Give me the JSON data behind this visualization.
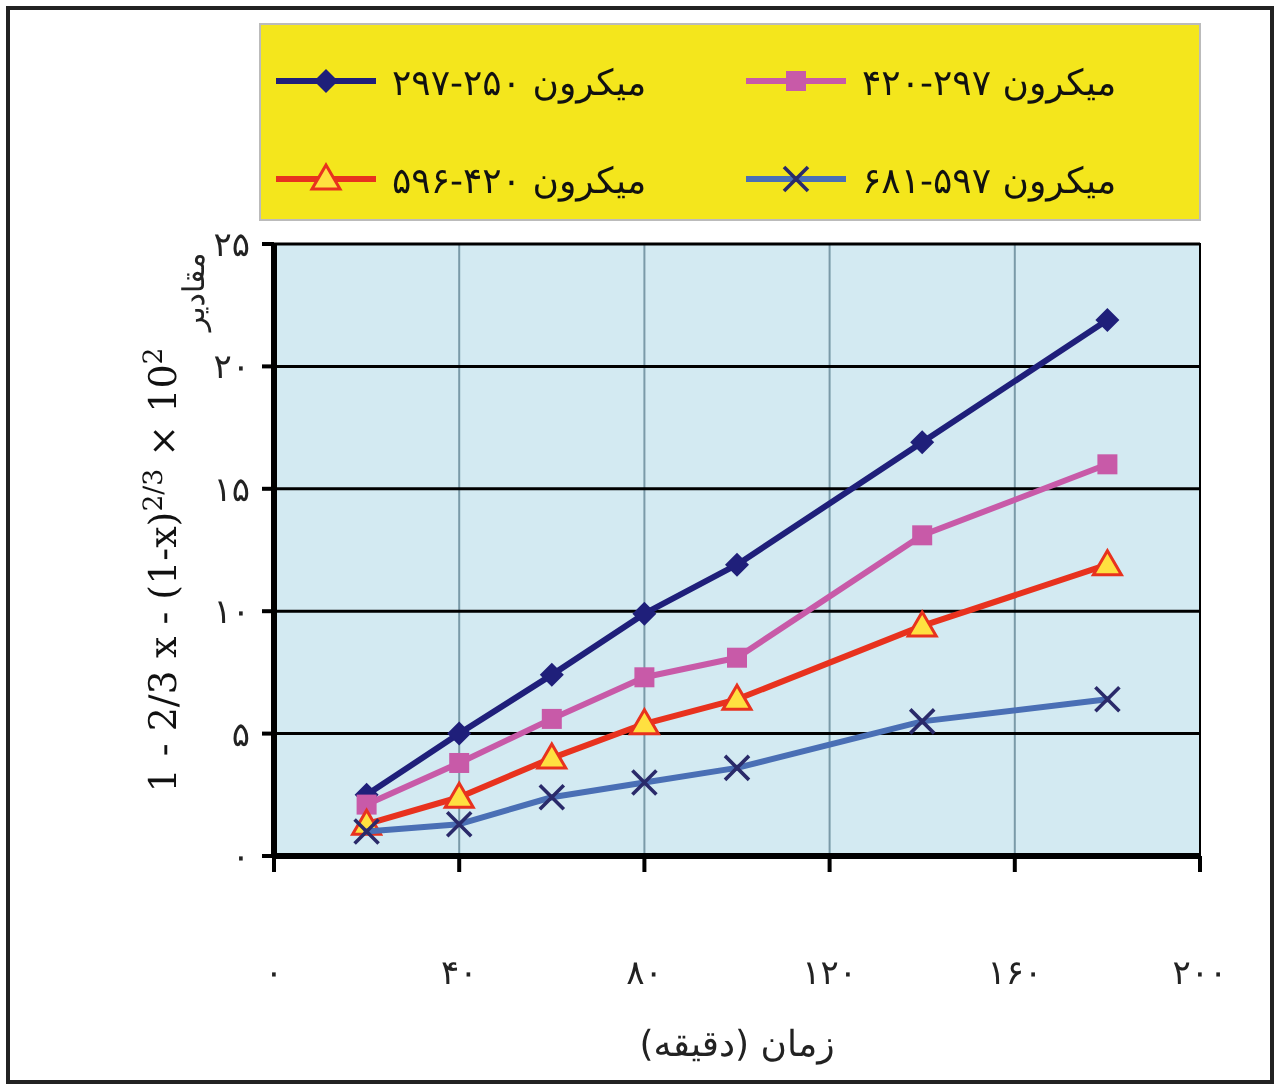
{
  "chart_data": {
    "type": "line",
    "xlabel": "زمان (دقیقه)",
    "ylabel": "1 - 2/3 x - (1-x)$^{2/3}$ × 10$^{2}$",
    "annotations": [
      "مقادیر"
    ],
    "x": [
      20,
      40,
      60,
      80,
      100,
      140,
      180
    ],
    "series": [
      {
        "name": "میکرون ۲۵۰-۲۹۷",
        "color": "#1f1f7a",
        "marker": "diamond",
        "values": [
          2.5,
          5.0,
          7.4,
          9.9,
          11.9,
          16.9,
          21.9
        ]
      },
      {
        "name": "میکرون ۲۹۷-۴۲۰",
        "color": "#c85aa8",
        "marker": "square",
        "values": [
          2.1,
          3.8,
          5.6,
          7.3,
          8.1,
          13.1,
          16.0
        ]
      },
      {
        "name": "میکرون ۴۲۰-۵۹۶",
        "color": "#e8321e",
        "marker": "triangle",
        "values": [
          1.3,
          2.4,
          4.0,
          5.4,
          6.4,
          9.4,
          11.9
        ]
      },
      {
        "name": "میکرون ۵۹۷-۶۸۱",
        "color": "#4a6fb5",
        "marker": "cross",
        "values": [
          1.0,
          1.3,
          2.4,
          3.0,
          3.6,
          5.5,
          6.4
        ]
      }
    ],
    "xlim": [
      0,
      200
    ],
    "xticks": [
      {
        "value": 0,
        "label": "۰"
      },
      {
        "value": 40,
        "label": "۴۰"
      },
      {
        "value": 80,
        "label": "۸۰"
      },
      {
        "value": 120,
        "label": "۱۲۰"
      },
      {
        "value": 160,
        "label": "۱۶۰"
      },
      {
        "value": 200,
        "label": "۲۰۰"
      }
    ],
    "ylim": [
      0,
      25
    ],
    "yticks": [
      {
        "value": 0,
        "label": "۰"
      },
      {
        "value": 5,
        "label": "۵"
      },
      {
        "value": 10,
        "label": "۱۰"
      },
      {
        "value": 15,
        "label": "۱۵"
      },
      {
        "value": 20,
        "label": "۲۰"
      },
      {
        "value": 25,
        "label": "۲۵"
      }
    ],
    "grid": true,
    "legend": "top",
    "line_style": "solid"
  }
}
